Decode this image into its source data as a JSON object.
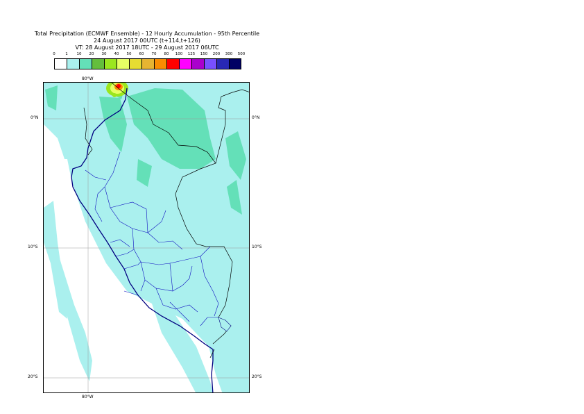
{
  "header": {
    "title": "Total Precipitation (ECMWF Ensemble) - 12 Hourly Accumulation - 95th Percentile",
    "base_time": "24 August 2017 00UTC (t+114,t+126)",
    "valid_time": "VT: 28 August 2017 18UTC - 29 August 2017 06UTC"
  },
  "legend": {
    "labels": [
      "0",
      "1",
      "10",
      "20",
      "30",
      "40",
      "50",
      "60",
      "70",
      "80",
      "100",
      "125",
      "150",
      "200",
      "300",
      "500"
    ],
    "colors": [
      "#ffffff",
      "#aaf0ee",
      "#64e0b8",
      "#64be3c",
      "#9be61e",
      "#e6ff64",
      "#e6dc32",
      "#e6b432",
      "#fa8c00",
      "#ff0000",
      "#ff00ff",
      "#aa00cc",
      "#7850ff",
      "#2828b4",
      "#000064"
    ]
  },
  "map": {
    "lon_labels": [
      "80°W",
      "80°W"
    ],
    "lat_labels": [
      "0°N",
      "0°N",
      "10°S",
      "10°S",
      "20°S",
      "20°S"
    ]
  }
}
